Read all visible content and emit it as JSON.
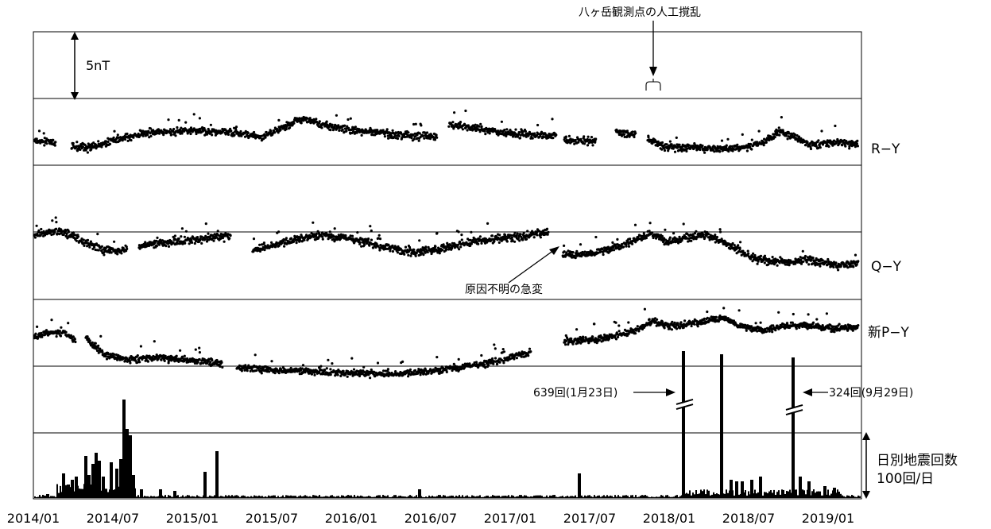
{
  "chart_data": {
    "type": "scatter",
    "x_axis": {
      "tick_labels": [
        "2014/01",
        "2014/07",
        "2015/01",
        "2015/07",
        "2016/01",
        "2016/07",
        "2017/01",
        "2017/07",
        "2018/01",
        "2018/07",
        "2019/01"
      ]
    },
    "scale_bar": {
      "label": "5nT"
    },
    "series": [
      {
        "name": "R−Y",
        "key": "ry"
      },
      {
        "name": "Q−Y",
        "key": "qy"
      },
      {
        "name": "新P−Y",
        "key": "py"
      }
    ],
    "bar_series": {
      "label_line1": "日別地震回数",
      "label_line2": "100回/日"
    },
    "annotations": {
      "top": "八ヶ岳観測点の人工撹乱",
      "jump": "原因不明の急変",
      "peak1": "639回(1月23日)",
      "peak2": "324回(9月29日)"
    }
  }
}
